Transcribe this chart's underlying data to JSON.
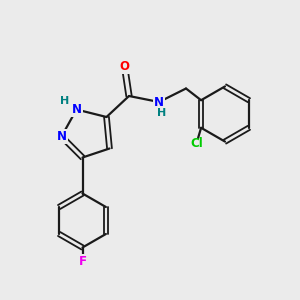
{
  "bg_color": "#ebebeb",
  "bond_color": "#1a1a1a",
  "atom_colors": {
    "O": "#ff0000",
    "N": "#0000ff",
    "H": "#008080",
    "Cl": "#00cc00",
    "F": "#ee00ee",
    "C": "#1a1a1a"
  },
  "figsize": [
    3.0,
    3.0
  ],
  "dpi": 100
}
